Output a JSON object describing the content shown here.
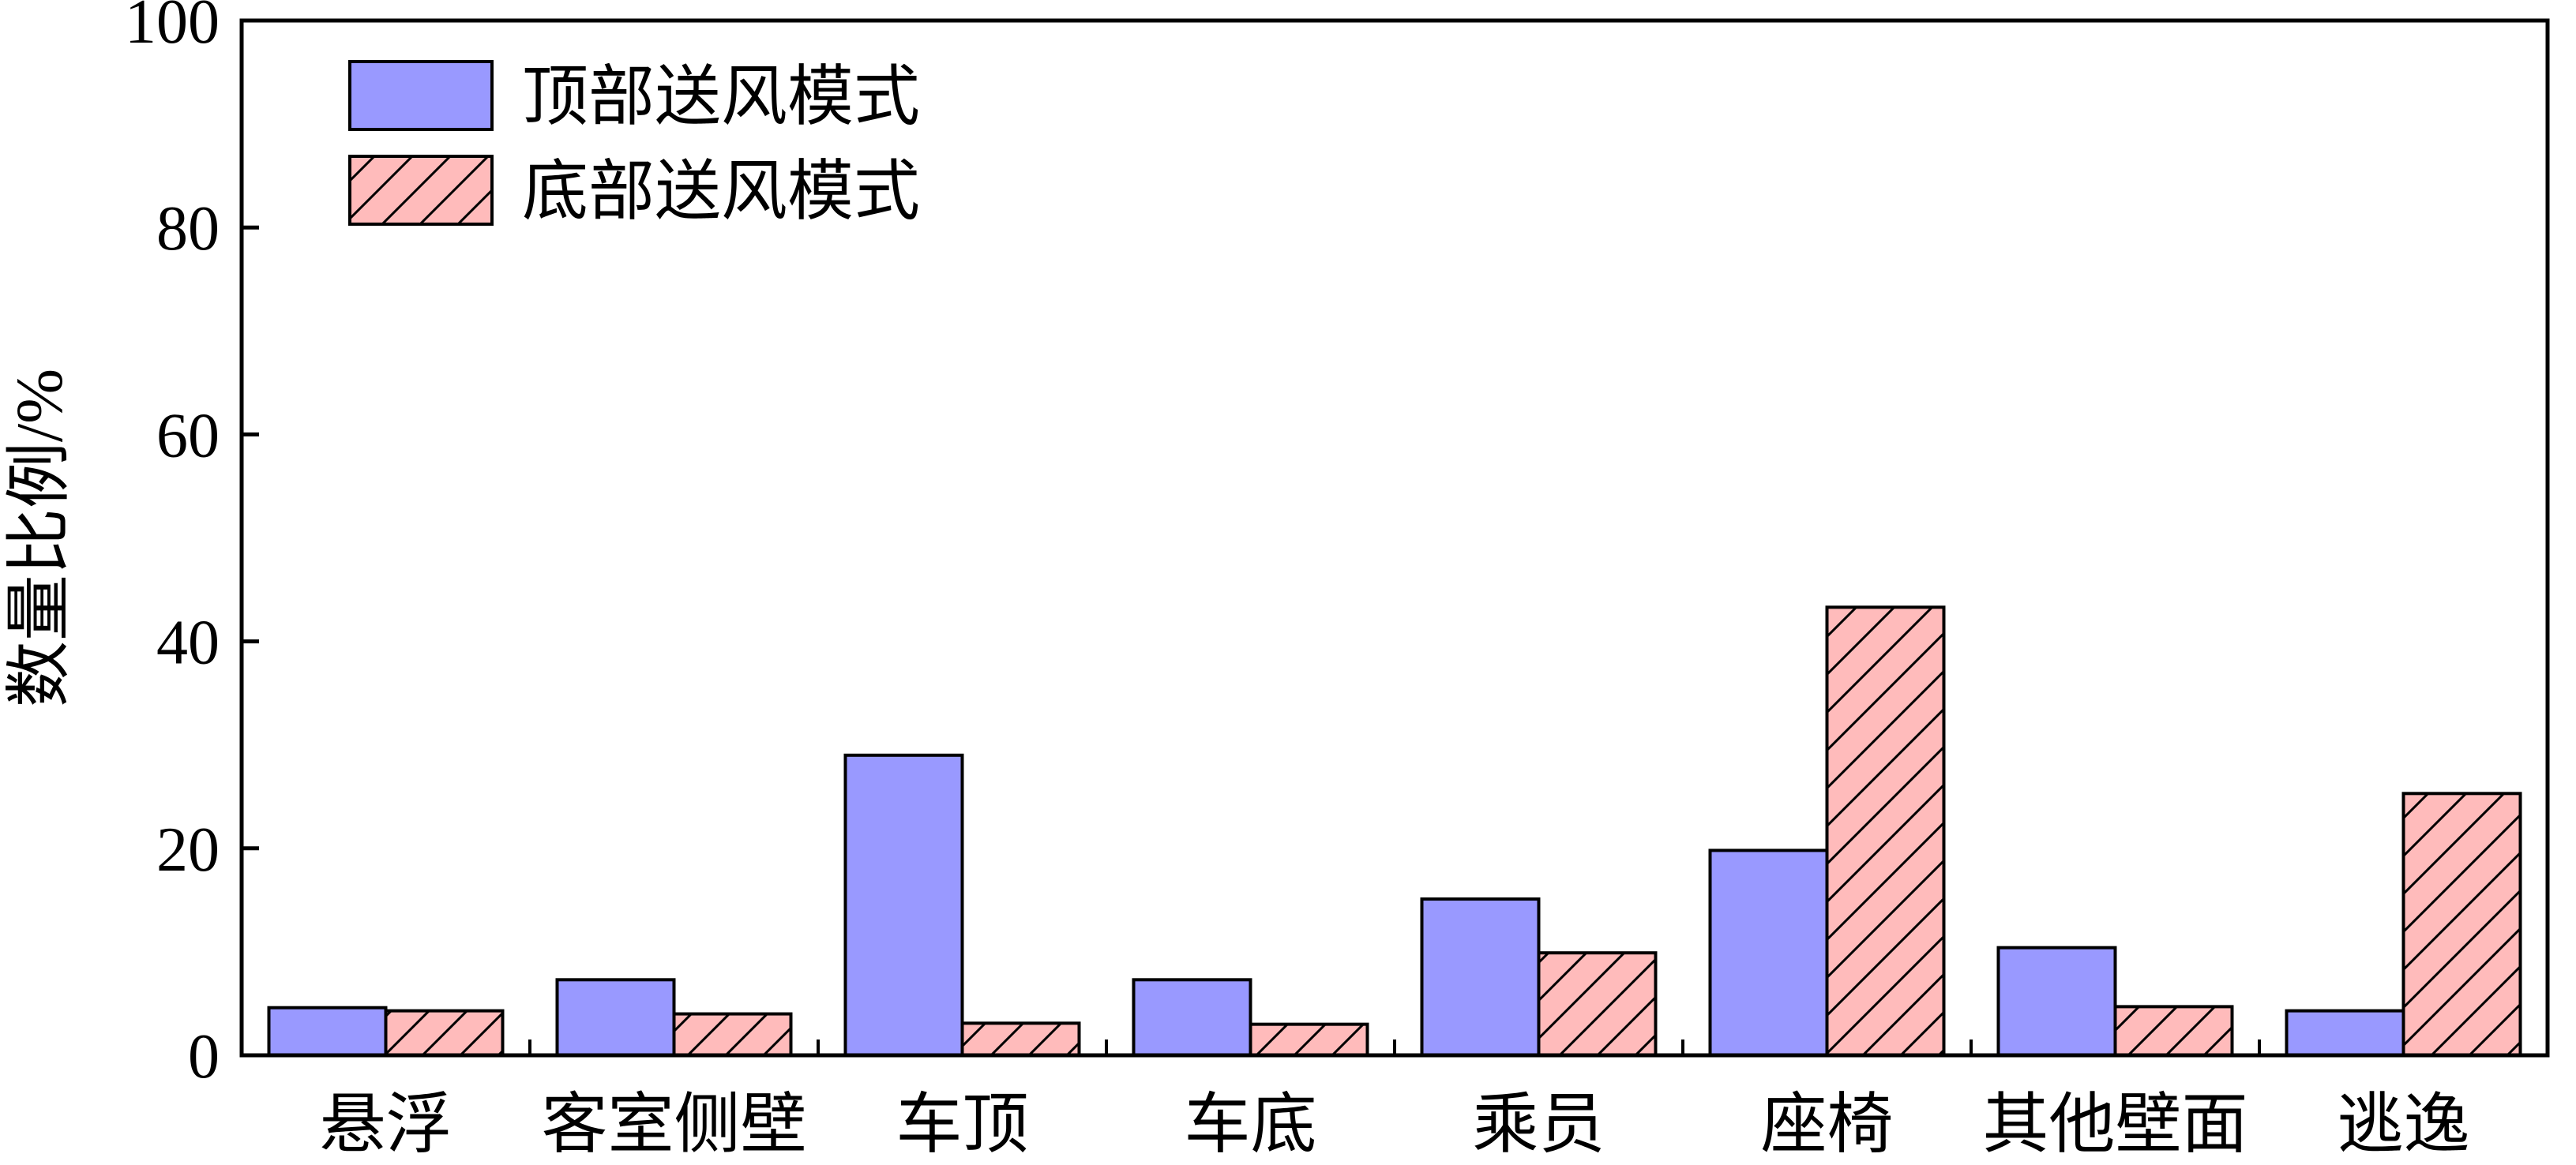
{
  "chart_data": {
    "type": "bar",
    "title": "",
    "xlabel": "",
    "ylabel": "数量比例/%",
    "ylim": [
      0,
      100
    ],
    "yticks": [
      0,
      20,
      40,
      60,
      80,
      100
    ],
    "grid": false,
    "legend_position": "top-left",
    "categories": [
      "悬浮",
      "客室侧壁",
      "车顶",
      "车底",
      "乘员",
      "座椅",
      "其他壁面",
      "逃逸"
    ],
    "series": [
      {
        "name": "顶部送风模式",
        "color": "#9999ff",
        "pattern": "solid",
        "values": [
          4.6,
          7.3,
          29.0,
          7.3,
          15.1,
          19.8,
          10.4,
          4.3
        ]
      },
      {
        "name": "底部送风模式",
        "color": "#ffbbbb",
        "pattern": "diagonal-hatch",
        "values": [
          4.3,
          4.0,
          3.1,
          3.0,
          9.9,
          43.3,
          4.7,
          25.3
        ]
      }
    ]
  }
}
